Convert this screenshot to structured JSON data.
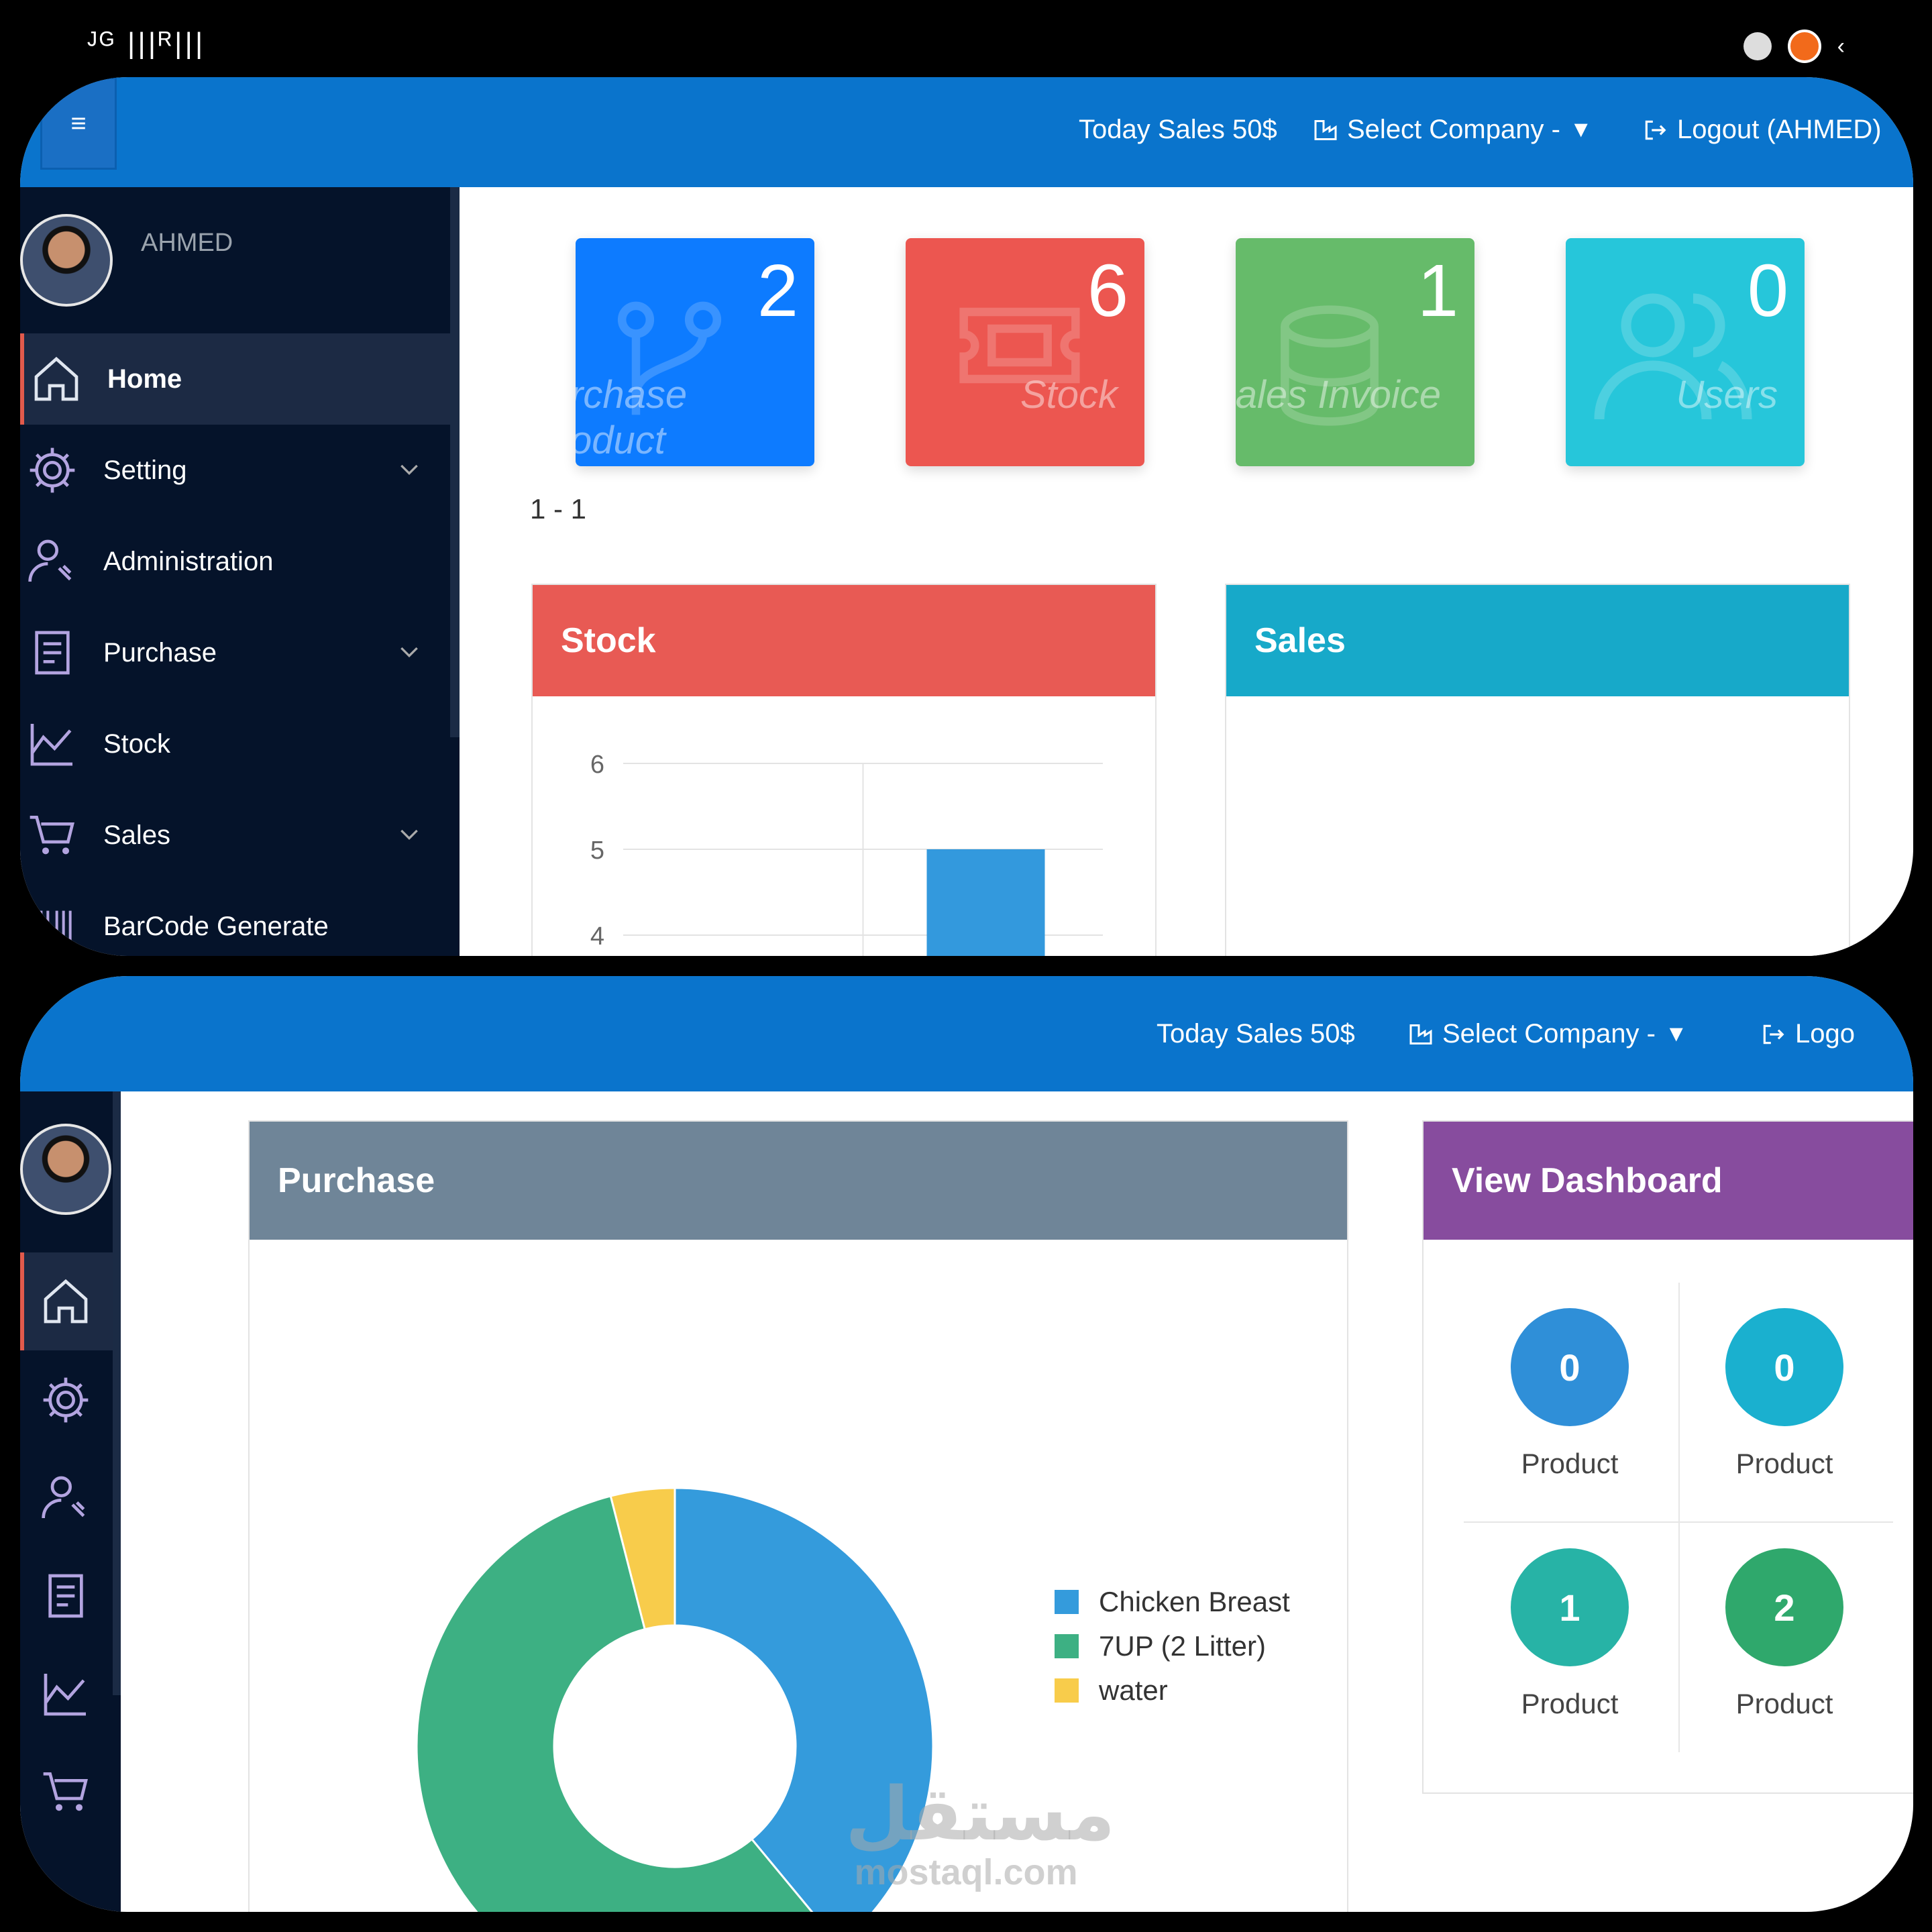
{
  "status_bar": {
    "left_text": "ᴶᴳ |||ᴿ||| ",
    "colors": {
      "dot_orange": "#f26a1b"
    }
  },
  "topbar": {
    "today_sales": "Today Sales 50$",
    "select_company": "Select Company -",
    "logout": "Logout (AHMED)",
    "logout_cut": "Logo"
  },
  "sidebar": {
    "username": "AHMED",
    "items": [
      {
        "label": "Home",
        "icon": "home-icon",
        "active": true,
        "has_chevron": false
      },
      {
        "label": "Setting",
        "icon": "gear-icon",
        "has_chevron": true
      },
      {
        "label": "Administration",
        "icon": "user-wrench-icon",
        "has_chevron": false
      },
      {
        "label": "Purchase",
        "icon": "purchase-list-icon",
        "has_chevron": true
      },
      {
        "label": "Stock",
        "icon": "chart-line-icon",
        "has_chevron": false
      },
      {
        "label": "Sales",
        "icon": "cart-icon",
        "has_chevron": true
      },
      {
        "label": "BarCode Generate",
        "icon": "barcode-icon",
        "has_chevron": false
      }
    ]
  },
  "stat_cards": [
    {
      "value": "2",
      "label": "Purchase Product",
      "label_line1": "rchase",
      "label_line2": "oduct",
      "color": "#0d7bff"
    },
    {
      "value": "6",
      "label": "Stock",
      "color": "#ec5650"
    },
    {
      "value": "1",
      "label": "Sales Invoice",
      "label_short": "ales Invoice",
      "color": "#66bb6a"
    },
    {
      "value": "0",
      "label": "Users",
      "color": "#26c6da"
    }
  ],
  "pager_text": "1 - 1",
  "stock_box": {
    "title": "Stock",
    "color": "#e85a54"
  },
  "sales_box": {
    "title": "Sales",
    "color": "#17a9c9"
  },
  "purchase_box": {
    "title": "Purchase",
    "color": "#6f8598"
  },
  "view_dashboard": {
    "title": "View Dashboard",
    "color": "#874c9e",
    "tiles": [
      {
        "value": "0",
        "label": "Product",
        "color": "#2f8fd8"
      },
      {
        "value": "0",
        "label": "Product",
        "color": "#1ab0cf"
      },
      {
        "value": "1",
        "label": "Product",
        "color": "#27b3a6"
      },
      {
        "value": "2",
        "label": "Product",
        "color": "#2fa86c"
      }
    ]
  },
  "chart_data": [
    {
      "type": "bar",
      "title": "Stock",
      "categories": [
        "",
        ""
      ],
      "values": [
        null,
        5
      ],
      "y_ticks": [
        "6",
        "5",
        "4"
      ],
      "ylim": [
        4,
        6
      ],
      "color": "#3399dd"
    },
    {
      "type": "pie",
      "title": "Purchase",
      "labels": [
        "Chicken Breast",
        "7UP (2 Litter)",
        "water"
      ],
      "values": [
        39,
        57,
        4
      ],
      "colors": [
        "#349bdc",
        "#3db083",
        "#f8cc4b"
      ],
      "legend": "right"
    }
  ],
  "watermark": {
    "arabic": "مستقل",
    "latin": "mostaql.com"
  }
}
